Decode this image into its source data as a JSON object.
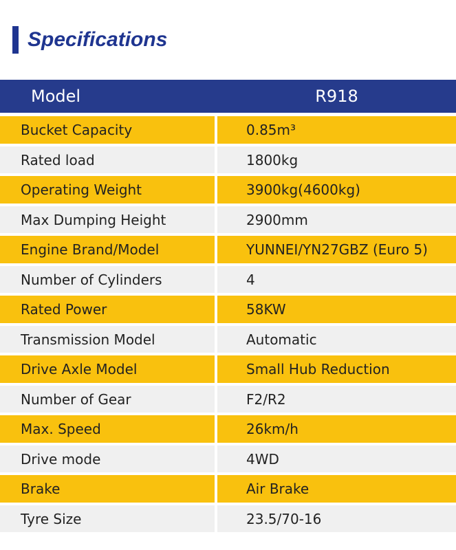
{
  "header": {
    "title": "Specifications"
  },
  "table": {
    "header": [
      "Model",
      "R918"
    ],
    "rows": [
      [
        "Bucket Capacity",
        "0.85m³"
      ],
      [
        "Rated load",
        "1800kg"
      ],
      [
        "Operating Weight",
        "3900kg(4600kg)"
      ],
      [
        "Max Dumping Height",
        "2900mm"
      ],
      [
        "Engine Brand/Model",
        "YUNNEI/YN27GBZ (Euro 5)"
      ],
      [
        "Number of Cylinders",
        "4"
      ],
      [
        "Rated Power",
        "58KW"
      ],
      [
        "Transmission Model",
        "Automatic"
      ],
      [
        "Drive Axle Model",
        "Small Hub Reduction"
      ],
      [
        "Number of Gear",
        "F2/R2"
      ],
      [
        "Max. Speed",
        "26km/h"
      ],
      [
        "Drive mode",
        "4WD"
      ],
      [
        "Brake",
        "Air Brake"
      ],
      [
        "Tyre Size",
        "23.5/70-16"
      ]
    ]
  }
}
